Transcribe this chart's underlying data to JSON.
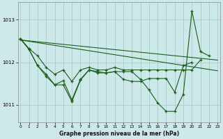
{
  "bg_color": "#cce8e8",
  "line_color": "#1a5c1a",
  "grid_color": "#aacccc",
  "title": "Graphe pression niveau de la mer (hPa)",
  "ylabel_ticks": [
    1011,
    1012,
    1013
  ],
  "xlim": [
    0,
    23
  ],
  "ylim": [
    1010.6,
    1013.4
  ],
  "x_ticks": [
    0,
    1,
    2,
    3,
    4,
    5,
    6,
    7,
    8,
    9,
    10,
    11,
    12,
    13,
    14,
    15,
    16,
    17,
    18,
    19,
    20,
    21,
    22,
    23
  ],
  "series_with_markers": [
    [
      1012.55,
      1012.3,
      1011.92,
      1011.72,
      1011.47,
      1011.47,
      1011.08,
      1011.58,
      1011.82,
      1011.75,
      1011.75,
      1011.78,
      1011.78,
      1011.78,
      1011.6,
      1011.35,
      1011.05,
      1010.85,
      1010.85,
      1011.25,
      1013.2,
      1012.25,
      1012.15,
      null
    ],
    [
      1012.55,
      1012.3,
      1011.92,
      1011.67,
      1011.47,
      1011.57,
      1011.12,
      1011.6,
      1011.82,
      1011.78,
      1011.75,
      1011.78,
      1011.6,
      1011.55,
      1011.55,
      1011.62,
      1011.62,
      1011.62,
      1011.3,
      1011.92,
      1012.0,
      null,
      null,
      null
    ],
    [
      1012.55,
      1012.32,
      1012.15,
      1011.88,
      1011.72,
      1011.82,
      1011.55,
      1011.82,
      1011.88,
      1011.82,
      1011.82,
      1011.88,
      1011.82,
      1011.82,
      1011.82,
      1011.82,
      1011.82,
      1011.82,
      1011.82,
      1011.82,
      1011.82,
      1012.05,
      null,
      null
    ]
  ],
  "trend_line": [
    [
      0,
      23
    ],
    [
      1012.52,
      1011.8
    ]
  ],
  "flat_line": [
    [
      0,
      23
    ],
    [
      1012.52,
      1012.05
    ]
  ]
}
